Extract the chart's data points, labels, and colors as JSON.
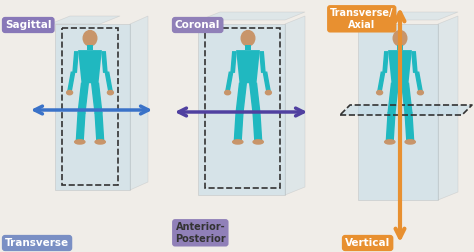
{
  "bg_color": "#f0ede8",
  "panels": [
    {
      "label_top": "Sagittal",
      "label_top_bg": "#8878b8",
      "label_top_color": "white",
      "label_bottom": "Transverse",
      "label_bottom_bg": "#7a8fc4",
      "label_bottom_color": "white",
      "arrow_color": "#3a72c8",
      "arrow_direction": "horizontal"
    },
    {
      "label_top": "Coronal",
      "label_top_bg": "#9080b8",
      "label_top_color": "white",
      "label_bottom": "Anterior-\nPosterior",
      "label_bottom_bg": "#9080b8",
      "label_bottom_color": "white",
      "arrow_color": "#5040a0",
      "arrow_direction": "horizontal"
    },
    {
      "label_top": "Transverse/\nAxial",
      "label_top_bg": "#e89030",
      "label_top_color": "white",
      "label_bottom": "Vertical",
      "label_bottom_bg": "#e89030",
      "label_bottom_color": "white",
      "arrow_color": "#e89030",
      "arrow_direction": "vertical"
    }
  ],
  "figure_color": "#20b8c0",
  "skin_color": "#c8956a",
  "plane_color": "#b8d8e8",
  "plane_alpha": 0.45,
  "dashed_color": "#333333"
}
